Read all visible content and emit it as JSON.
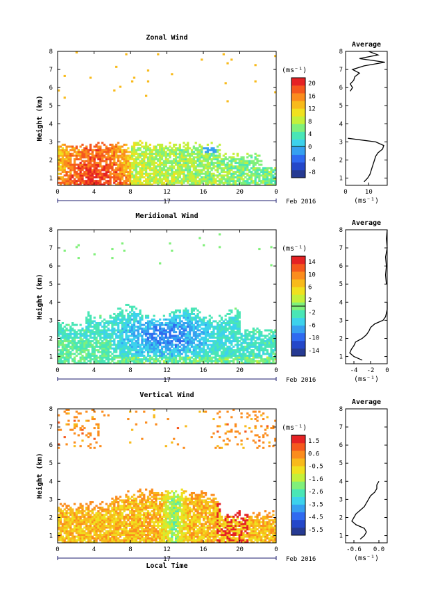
{
  "colors": {
    "colormap": [
      "#263A92",
      "#2447C9",
      "#2F6AF0",
      "#36A0F0",
      "#3CD2EC",
      "#49E6B6",
      "#80F07A",
      "#C4F03A",
      "#F0E11F",
      "#F8BA1B",
      "#FB8C1D",
      "#F5581D",
      "#E52224"
    ],
    "contour": "#000000",
    "axis": "#000000",
    "date_bar": "#1b1b6e"
  },
  "chart_data": [
    {
      "type": "heatmap",
      "title": "Zonal Wind",
      "xlabel": "",
      "ylabel": "Height (km)",
      "x_range": [
        0,
        24
      ],
      "x_ticks": [
        "0",
        "4",
        "8",
        "12",
        "16",
        "20",
        "0"
      ],
      "y_range": [
        0.6,
        8
      ],
      "y_ticks": [
        "1",
        "2",
        "3",
        "4",
        "5",
        "6",
        "7",
        "8"
      ],
      "date_day": "17",
      "date_label": "Feb 2016",
      "colorbar": {
        "unit": "(ms⁻¹)",
        "ticks": [
          "20",
          "16",
          "12",
          "8",
          "4",
          "0",
          "-4",
          "-8"
        ],
        "range": [
          -10,
          22
        ],
        "contour_at": 0
      },
      "data_summary": "Echoes mostly below ~3 km; 12–20 ms⁻¹ (orange/red) from 00–08 LT, 4–10 ms⁻¹ later in the day, small negative (0 contour) patch near 2.6 km around 16–18 LT.",
      "profile": {
        "title": "Average",
        "xlabel": "(ms⁻¹)",
        "x_ticks": [
          "0",
          "10"
        ],
        "x_range": [
          0,
          18
        ],
        "heights_km": [
          0.8,
          1.0,
          1.2,
          1.4,
          1.6,
          1.8,
          2.0,
          2.2,
          2.4,
          2.6,
          2.8,
          3.0,
          3.2,
          5.8,
          6.0,
          6.2,
          6.4,
          6.6,
          6.8,
          7.0,
          7.2,
          7.4,
          7.6,
          7.8,
          8.0
        ],
        "values": [
          8.0,
          9.5,
          10.5,
          11.0,
          11.5,
          12.0,
          12.5,
          13.0,
          14.0,
          16.0,
          16.5,
          13.0,
          1.0,
          2.0,
          3.0,
          2.0,
          3.5,
          4.0,
          6.0,
          3.0,
          8.0,
          17.0,
          6.0,
          14.0,
          10.0
        ]
      }
    },
    {
      "type": "heatmap",
      "title": "Meridional Wind",
      "xlabel": "",
      "ylabel": "Height (km)",
      "x_range": [
        0,
        24
      ],
      "x_ticks": [
        "0",
        "4",
        "8",
        "12",
        "16",
        "20",
        "0"
      ],
      "y_range": [
        0.6,
        8
      ],
      "y_ticks": [
        "1",
        "2",
        "3",
        "4",
        "5",
        "6",
        "7",
        "8"
      ],
      "date_day": "17",
      "date_label": "Feb 2016",
      "colorbar": {
        "unit": "(ms⁻¹)",
        "ticks": [
          "14",
          "10",
          "6",
          "2",
          "-2",
          "-6",
          "-10",
          "-14"
        ],
        "range": [
          -16,
          16
        ],
        "contour_at": 0
      },
      "data_summary": "Mostly negative (blue) winds of -2 to -10 ms⁻¹ below ~3.5 km, strongest around 10–16 LT; near-zero cyan values close to the surface and at cloud tops.",
      "profile": {
        "title": "Average",
        "xlabel": "(ms⁻¹)",
        "x_ticks": [
          "-4",
          "-2",
          "0"
        ],
        "x_range": [
          -5,
          0
        ],
        "heights_km": [
          0.8,
          1.0,
          1.2,
          1.4,
          1.6,
          1.8,
          2.0,
          2.2,
          2.4,
          2.6,
          2.8,
          3.0,
          3.2,
          3.4,
          3.6,
          4.0,
          5.0,
          5.5,
          6.0,
          6.5,
          7.0,
          7.5,
          8.0
        ],
        "values": [
          -3.0,
          -4.0,
          -4.5,
          -4.3,
          -4.0,
          -3.8,
          -3.0,
          -2.5,
          -2.2,
          -2.0,
          -1.5,
          -0.5,
          -0.2,
          -0.1,
          0.0,
          0.0,
          -0.1,
          -0.2,
          -0.1,
          -0.2,
          0.0,
          -0.1,
          0.0
        ]
      }
    },
    {
      "type": "heatmap",
      "title": "Vertical Wind",
      "xlabel": "Local Time",
      "ylabel": "Height (km)",
      "x_range": [
        0,
        24
      ],
      "x_ticks": [
        "0",
        "4",
        "8",
        "12",
        "16",
        "20",
        "0"
      ],
      "y_range": [
        0.6,
        8
      ],
      "y_ticks": [
        "1",
        "2",
        "3",
        "4",
        "5",
        "6",
        "7",
        "8"
      ],
      "date_day": "17",
      "date_label": "Feb 2016",
      "colorbar": {
        "unit": "(ms⁻¹)",
        "ticks": [
          "1.5",
          "0.6",
          "-0.5",
          "-1.6",
          "-2.6",
          "-3.5",
          "-4.5",
          "-5.5"
        ],
        "range": [
          -6,
          2
        ],
        "contour_at": null
      },
      "data_summary": "Weak updrafts/downdrafts (yellow/green, about -1 to 1 ms⁻¹) below ~3.5 km, cyan downdraft near 12–14 LT, red updraft streaks around 18–20 LT; scattered yellow echoes at 6–8 km.",
      "profile": {
        "title": "Average",
        "xlabel": "(ms⁻¹)",
        "x_ticks": [
          "-0.6",
          "0.0"
        ],
        "x_range": [
          -0.8,
          0.2
        ],
        "heights_km": [
          0.8,
          1.0,
          1.2,
          1.4,
          1.6,
          1.8,
          2.0,
          2.2,
          2.4,
          2.6,
          2.8,
          3.0,
          3.2,
          3.4,
          3.6,
          3.8,
          4.0,
          5.0,
          6.0,
          7.0,
          8.0
        ],
        "values": [
          -0.45,
          -0.35,
          -0.3,
          -0.35,
          -0.55,
          -0.65,
          -0.6,
          -0.55,
          -0.45,
          -0.35,
          -0.3,
          -0.25,
          -0.2,
          -0.1,
          -0.05,
          -0.05,
          0.0,
          0.0,
          0.05,
          0.0,
          0.0
        ]
      }
    }
  ]
}
